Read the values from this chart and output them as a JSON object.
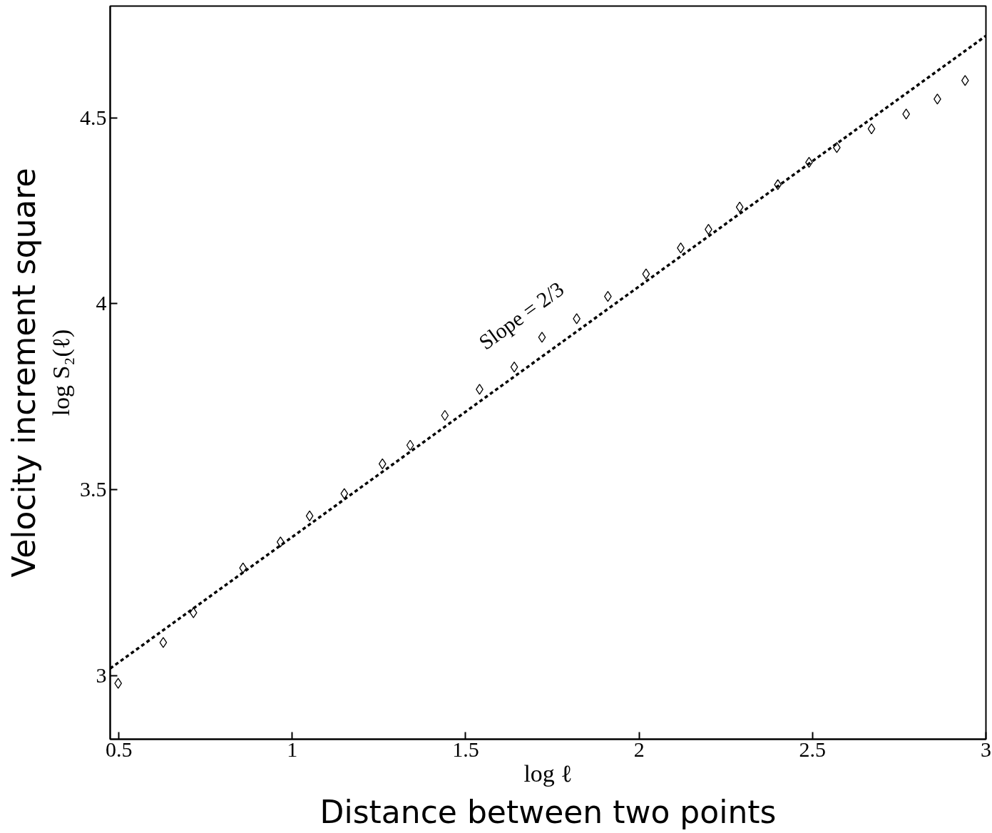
{
  "chart_data": {
    "type": "scatter",
    "xlabel": "log ℓ",
    "ylabel": "log S₂(ℓ)",
    "xlim": [
      0.475,
      3.0
    ],
    "ylim": [
      2.83,
      4.8
    ],
    "xticks": [
      0.5,
      1,
      1.5,
      2,
      2.5,
      3
    ],
    "yticks": [
      3,
      3.5,
      4,
      4.5
    ],
    "grid": false,
    "series": [
      {
        "marker": "diamond",
        "color": "#000000",
        "x": [
          0.498,
          0.628,
          0.715,
          0.858,
          0.966,
          1.05,
          1.15,
          1.26,
          1.34,
          1.44,
          1.54,
          1.64,
          1.72,
          1.82,
          1.91,
          2.02,
          2.12,
          2.2,
          2.29,
          2.4,
          2.49,
          2.57,
          2.67,
          2.77,
          2.86,
          2.94
        ],
        "values": [
          2.98,
          3.09,
          3.17,
          3.29,
          3.36,
          3.43,
          3.49,
          3.57,
          3.62,
          3.7,
          3.77,
          3.83,
          3.91,
          3.96,
          4.02,
          4.08,
          4.15,
          4.2,
          4.26,
          4.32,
          4.38,
          4.42,
          4.47,
          4.51,
          4.55,
          4.6
        ]
      },
      {
        "type": "line",
        "line_style": "dashed",
        "color": "#000000",
        "x": [
          0.475,
          3.0
        ],
        "values": [
          3.02,
          4.72
        ]
      }
    ],
    "annotations": [
      "Slope = 2/3",
      "Velocity increment square",
      "Distance between two points"
    ]
  }
}
